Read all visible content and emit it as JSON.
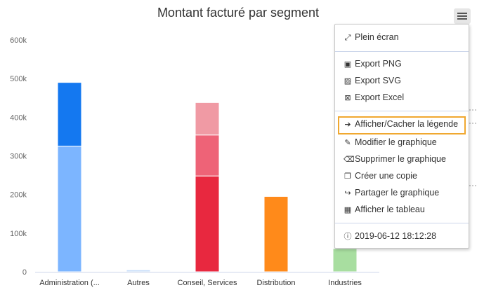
{
  "chart_data": {
    "type": "bar",
    "stacked": true,
    "title": "Montant facturé par segment",
    "categories": [
      "Administration (...",
      "Autres",
      "Conseil, Services",
      "Distribution",
      "Industries"
    ],
    "yticks": [
      "0",
      "100k",
      "200k",
      "300k",
      "400k",
      "500k",
      "600k"
    ],
    "ylim": [
      0,
      600000
    ],
    "grid": false,
    "stacks": [
      [
        {
          "value": 325000,
          "color": "#7cb5ff"
        },
        {
          "value": 165000,
          "color": "#1478f0"
        }
      ],
      [
        {
          "value": 5000,
          "color": "#c6dcfa"
        }
      ],
      [
        {
          "value": 248000,
          "color": "#e8283f"
        },
        {
          "value": 106000,
          "color": "#ee6377"
        },
        {
          "value": 84000,
          "color": "#f09aa4"
        }
      ],
      [
        {
          "value": 195000,
          "color": "#ff8a1a"
        }
      ],
      [
        {
          "value": 60000,
          "color": "#a8dea0"
        }
      ]
    ]
  },
  "menu": {
    "items": [
      {
        "label": "Plein écran",
        "icon": "expand-icon"
      },
      {
        "label": "Export PNG",
        "icon": "image-file-icon"
      },
      {
        "label": "Export SVG",
        "icon": "picture-icon"
      },
      {
        "label": "Export Excel",
        "icon": "excel-file-icon"
      },
      {
        "label": "Afficher/Cacher la légende",
        "icon": "arrow-right-icon"
      },
      {
        "label": "Modifier le graphique",
        "icon": "wrench-icon"
      },
      {
        "label": "Supprimer le graphique",
        "icon": "trash-icon"
      },
      {
        "label": "Créer une copie",
        "icon": "copy-icon"
      },
      {
        "label": "Partager le graphique",
        "icon": "share-icon"
      },
      {
        "label": "Afficher le tableau",
        "icon": "table-icon"
      },
      {
        "label": "2019-06-12 18:12:28",
        "icon": "info-icon"
      }
    ]
  }
}
